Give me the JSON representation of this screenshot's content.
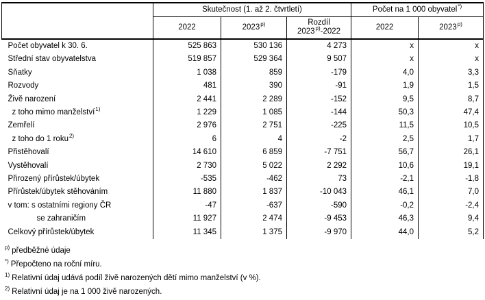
{
  "table": {
    "group1": "Skutečnost (1. až 2. čtvrtletí)",
    "group2": "Počet na 1 000 obyvatel",
    "group2_sup": "*)",
    "columns": {
      "actual_2022": "2022",
      "actual_2023": "2023",
      "actual_2023_sup": "p)",
      "diff_line1": "Rozdíl",
      "diff_line2_a": "2023",
      "diff_line2_sup": "p)",
      "diff_line2_b": "-2022",
      "per1000_2022": "2022",
      "per1000_2023": "2023",
      "per1000_2023_sup": "p)"
    },
    "rows": [
      {
        "label": "Počet obyvatel k 30. 6.",
        "sup": "",
        "indent": 0,
        "values": [
          "525 863",
          "530 136",
          "4 273",
          "x",
          "x"
        ]
      },
      {
        "label": "Střední stav obyvatelstva",
        "sup": "",
        "indent": 0,
        "values": [
          "519 857",
          "529 364",
          "9 507",
          "x",
          "x"
        ]
      },
      {
        "label": "Sňatky",
        "sup": "",
        "indent": 0,
        "values": [
          "1 038",
          "859",
          "-179",
          "4,0",
          "3,3"
        ]
      },
      {
        "label": "Rozvody",
        "sup": "",
        "indent": 0,
        "values": [
          "481",
          "390",
          "-91",
          "1,9",
          "1,5"
        ]
      },
      {
        "label": "Živě narození",
        "sup": "",
        "indent": 0,
        "values": [
          "2 441",
          "2 289",
          "-152",
          "9,5",
          "8,7"
        ]
      },
      {
        "label": "z toho mimo manželství",
        "sup": "1)",
        "indent": 1,
        "values": [
          "1 229",
          "1 085",
          "-144",
          "50,3",
          "47,4"
        ]
      },
      {
        "label": "Zemřelí",
        "sup": "",
        "indent": 0,
        "values": [
          "2 976",
          "2 751",
          "-225",
          "11,5",
          "10,5"
        ]
      },
      {
        "label": "z toho do 1 roku",
        "sup": "2)",
        "indent": 1,
        "values": [
          "6",
          "4",
          "-2",
          "2,5",
          "1,7"
        ]
      },
      {
        "label": "Přistěhovalí",
        "sup": "",
        "indent": 0,
        "values": [
          "14 610",
          "6 859",
          "-7 751",
          "56,7",
          "26,1"
        ]
      },
      {
        "label": "Vystěhovalí",
        "sup": "",
        "indent": 0,
        "values": [
          "2 730",
          "5 022",
          "2 292",
          "10,6",
          "19,1"
        ]
      },
      {
        "label": "Přirozený přírůstek/úbytek",
        "sup": "",
        "indent": 0,
        "values": [
          "-535",
          "-462",
          "73",
          "-2,1",
          "-1,8"
        ]
      },
      {
        "label": "Přírůstek/úbytek stěhováním",
        "sup": "",
        "indent": 0,
        "values": [
          "11 880",
          "1 837",
          "-10 043",
          "46,1",
          "7,0"
        ]
      },
      {
        "label": "v tom: s ostatními regiony ČR",
        "sup": "",
        "indent": 0,
        "values": [
          "-47",
          "-637",
          "-590",
          "-0,2",
          "-2,4"
        ]
      },
      {
        "label": "se zahraničím",
        "sup": "",
        "indent": 2,
        "values": [
          "11 927",
          "2 474",
          "-9 453",
          "46,3",
          "9,4"
        ]
      },
      {
        "label": "Celkový přírůstek/úbytek",
        "sup": "",
        "indent": 0,
        "values": [
          "11 345",
          "1 375",
          "-9 970",
          "44,0",
          "5,2"
        ]
      }
    ]
  },
  "footnotes": [
    {
      "sup": "p)",
      "text": "předběžné údaje"
    },
    {
      "sup": "*)",
      "text": "Přepočteno na roční míru."
    },
    {
      "sup": "1)",
      "text": "Relativní údaj udává podíl živě narozených dětí mimo manželství (v %)."
    },
    {
      "sup": "2)",
      "text": "Relativní údaj je na 1 000 živě narozených."
    }
  ]
}
